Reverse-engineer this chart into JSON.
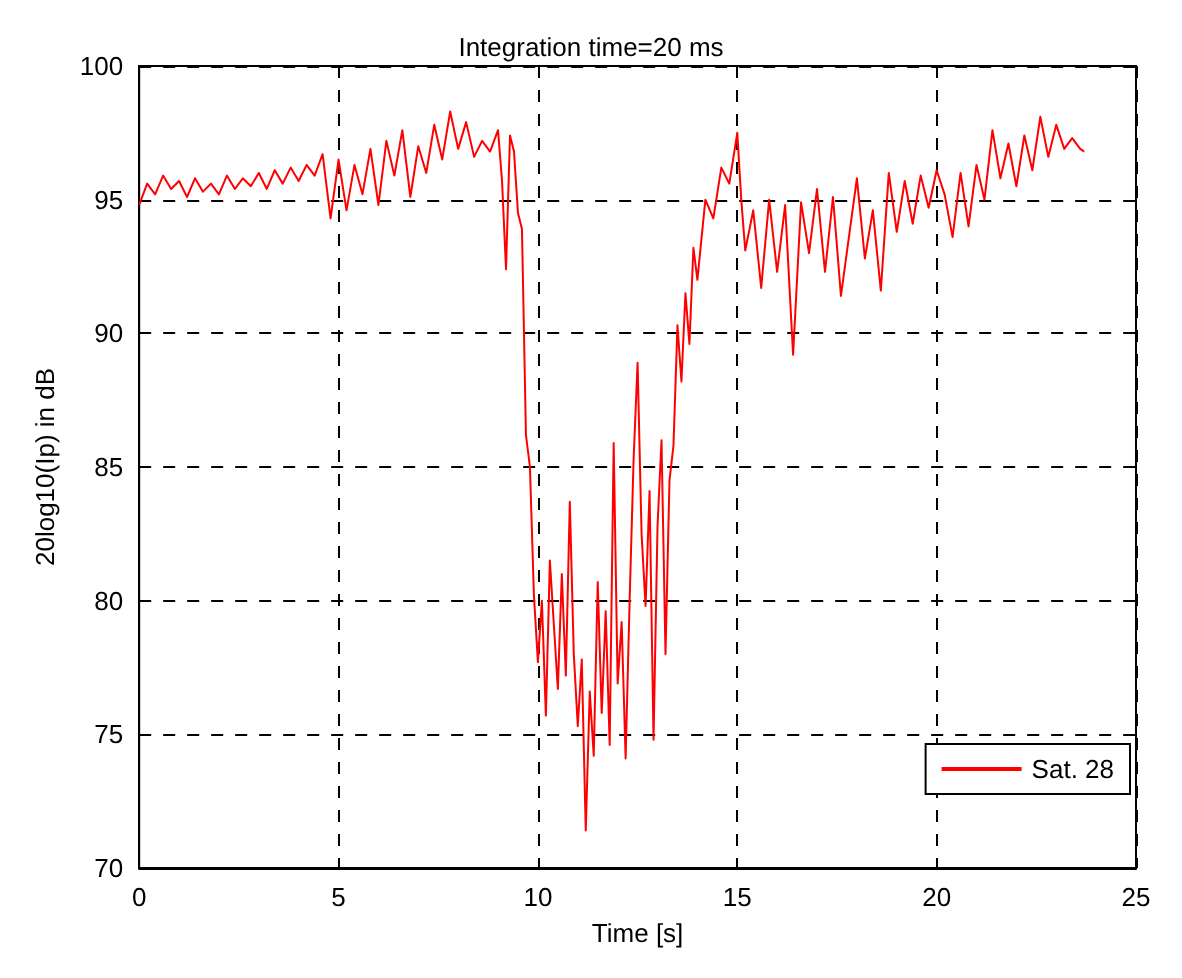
{
  "chart_data": {
    "type": "line",
    "title": "Integration time=20 ms",
    "xlabel": "Time [s]",
    "ylabel": "20log10(Ip) in dB",
    "x": [
      0,
      0.2,
      0.4,
      0.6,
      0.8,
      1.0,
      1.2,
      1.4,
      1.6,
      1.8,
      2.0,
      2.2,
      2.4,
      2.6,
      2.8,
      3.0,
      3.2,
      3.4,
      3.6,
      3.8,
      4.0,
      4.2,
      4.4,
      4.6,
      4.8,
      5.0,
      5.2,
      5.4,
      5.6,
      5.8,
      6.0,
      6.2,
      6.4,
      6.6,
      6.8,
      7.0,
      7.2,
      7.4,
      7.6,
      7.8,
      8.0,
      8.2,
      8.4,
      8.6,
      8.8,
      9.0,
      9.1,
      9.2,
      9.3,
      9.4,
      9.5,
      9.6,
      9.7,
      9.8,
      9.9,
      10.0,
      10.1,
      10.2,
      10.3,
      10.4,
      10.5,
      10.6,
      10.7,
      10.8,
      10.9,
      11.0,
      11.1,
      11.2,
      11.3,
      11.4,
      11.5,
      11.6,
      11.7,
      11.8,
      11.9,
      12.0,
      12.1,
      12.2,
      12.3,
      12.4,
      12.5,
      12.6,
      12.7,
      12.8,
      12.9,
      13.0,
      13.1,
      13.2,
      13.3,
      13.4,
      13.5,
      13.6,
      13.7,
      13.8,
      13.9,
      14.0,
      14.2,
      14.4,
      14.6,
      14.8,
      15.0,
      15.1,
      15.2,
      15.4,
      15.6,
      15.8,
      16.0,
      16.2,
      16.4,
      16.6,
      16.8,
      17.0,
      17.2,
      17.4,
      17.6,
      17.8,
      18.0,
      18.2,
      18.4,
      18.6,
      18.8,
      19.0,
      19.2,
      19.4,
      19.6,
      19.8,
      20.0,
      20.2,
      20.4,
      20.6,
      20.8,
      21.0,
      21.2,
      21.4,
      21.6,
      21.8,
      22.0,
      22.2,
      22.4,
      22.6,
      22.8,
      23.0,
      23.2,
      23.4,
      23.6,
      23.7
    ],
    "series": [
      {
        "name": "Sat. 28",
        "color": "#ff0000",
        "values": [
          94.8,
          95.6,
          95.2,
          95.9,
          95.4,
          95.7,
          95.1,
          95.8,
          95.3,
          95.6,
          95.2,
          95.9,
          95.4,
          95.8,
          95.5,
          96.0,
          95.4,
          96.1,
          95.6,
          96.2,
          95.7,
          96.3,
          95.9,
          96.7,
          94.3,
          96.5,
          94.6,
          96.3,
          95.2,
          96.9,
          94.8,
          97.2,
          95.9,
          97.6,
          95.1,
          97.0,
          96.0,
          97.8,
          96.5,
          98.3,
          96.9,
          97.9,
          96.6,
          97.2,
          96.8,
          97.6,
          95.7,
          92.4,
          97.4,
          96.8,
          94.5,
          93.9,
          86.2,
          85.0,
          80.2,
          77.7,
          80.0,
          75.7,
          81.5,
          79.1,
          76.7,
          81.0,
          77.2,
          83.7,
          78.0,
          75.3,
          77.8,
          71.4,
          76.6,
          74.2,
          80.7,
          75.8,
          79.6,
          74.6,
          85.9,
          76.9,
          79.2,
          74.1,
          80.0,
          85.3,
          88.9,
          82.5,
          79.8,
          84.1,
          74.8,
          82.8,
          86.0,
          78.0,
          84.5,
          85.8,
          90.3,
          88.2,
          91.5,
          89.6,
          93.2,
          92.0,
          95.0,
          94.3,
          96.2,
          95.6,
          97.5,
          95.0,
          93.1,
          94.6,
          91.7,
          95.0,
          92.3,
          94.8,
          89.2,
          94.9,
          93.0,
          95.4,
          92.3,
          95.1,
          91.4,
          93.6,
          95.8,
          92.8,
          94.6,
          91.6,
          96.0,
          93.8,
          95.7,
          94.1,
          95.9,
          94.7,
          96.1,
          95.2,
          93.6,
          96.0,
          94.0,
          96.3,
          95.0,
          97.6,
          95.8,
          97.1,
          95.5,
          97.4,
          96.1,
          98.1,
          96.6,
          97.8,
          96.9,
          97.3,
          96.9,
          96.8
        ]
      }
    ],
    "xlim": [
      0,
      25
    ],
    "xticks": [
      0,
      5,
      10,
      15,
      20,
      25
    ],
    "ylim": [
      70,
      100
    ],
    "yticks": [
      70,
      75,
      80,
      85,
      90,
      95,
      100
    ],
    "grid": true,
    "legend": "bottom right",
    "marker": "none",
    "line_style": "solid"
  }
}
